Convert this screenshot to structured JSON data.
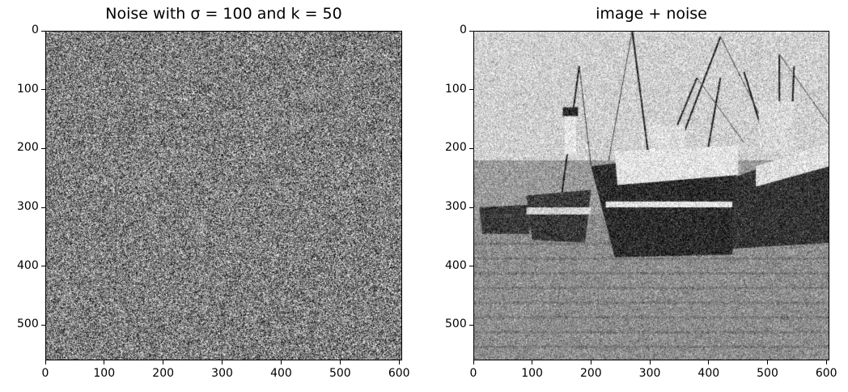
{
  "chart_data": [
    {
      "type": "image",
      "title": "Noise with σ = 100 and k = 50",
      "colormap": "gray",
      "content": "random gaussian noise field",
      "x_ticks": [
        0,
        100,
        200,
        300,
        400,
        500,
        600
      ],
      "y_ticks": [
        0,
        100,
        200,
        300,
        400,
        500
      ],
      "xlim": [
        0,
        605
      ],
      "ylim": [
        560,
        0
      ],
      "grid": false
    },
    {
      "type": "image",
      "title": "image + noise",
      "colormap": "gray",
      "content": "noisy grayscale photo of fishing boats beached on sand",
      "x_ticks": [
        0,
        100,
        200,
        300,
        400,
        500,
        600
      ],
      "y_ticks": [
        0,
        100,
        200,
        300,
        400,
        500
      ],
      "xlim": [
        0,
        605
      ],
      "ylim": [
        560,
        0
      ],
      "grid": false
    }
  ]
}
